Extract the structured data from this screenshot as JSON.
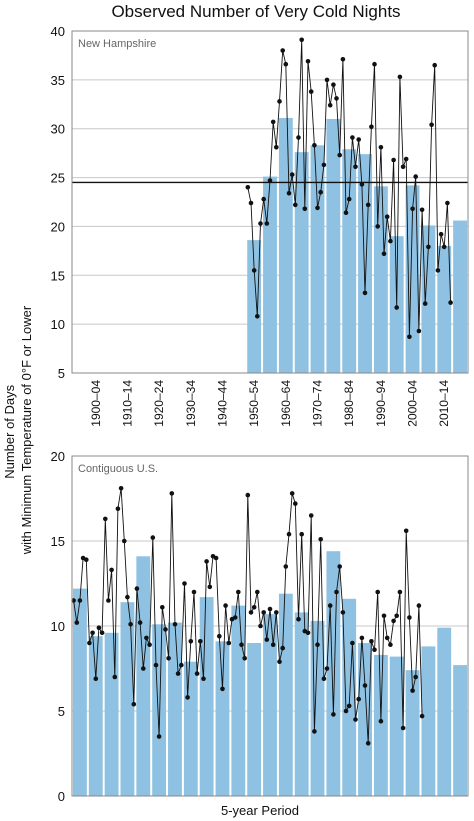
{
  "chart_data": [
    {
      "type": "bar",
      "title": "Observed Number of Very Cold Nights",
      "panel_label": "New Hampshire",
      "ylabel": "Number of Days\nwith Minimum Temperature of 0°F or Lower",
      "ylim": [
        5,
        40
      ],
      "yticks": [
        5,
        10,
        15,
        20,
        25,
        30,
        35,
        40
      ],
      "grid": true,
      "x_tick_labels": [
        "1900–04",
        "1910–14",
        "1920–24",
        "1930–34",
        "1940–44",
        "1950–54",
        "1960–64",
        "1970–74",
        "1980–84",
        "1990–94",
        "2000–04",
        "2010–14"
      ],
      "reference_line": 24.5,
      "bars": [
        {
          "period": "1950–54",
          "value": 18.6
        },
        {
          "period": "1955–59",
          "value": 25.1
        },
        {
          "period": "1960–64",
          "value": 31.1
        },
        {
          "period": "1965–69",
          "value": 27.6
        },
        {
          "period": "1970–74",
          "value": 28.3
        },
        {
          "period": "1975–79",
          "value": 31.0
        },
        {
          "period": "1980–84",
          "value": 27.9
        },
        {
          "period": "1985–89",
          "value": 27.4
        },
        {
          "period": "1990–94",
          "value": 24.1
        },
        {
          "period": "1995–99",
          "value": 19.0
        },
        {
          "period": "2000–04",
          "value": 24.2
        },
        {
          "period": "2005–09",
          "value": 20.1
        },
        {
          "period": "2010–14",
          "value": 18.0
        },
        {
          "period": "2015–19",
          "value": 20.6
        }
      ],
      "points": {
        "start_year": 1950,
        "values": [
          24.0,
          22.4,
          15.5,
          10.8,
          20.3,
          22.8,
          20.3,
          24.7,
          30.7,
          28.1,
          32.8,
          38.0,
          36.6,
          23.4,
          25.3,
          22.2,
          29.1,
          39.1,
          21.8,
          36.9,
          33.8,
          28.3,
          21.9,
          23.5,
          26.3,
          35.0,
          32.4,
          34.5,
          33.1,
          27.3,
          37.1,
          21.4,
          22.8,
          29.1,
          26.1,
          28.9,
          24.3,
          13.2,
          22.2,
          30.2,
          36.6,
          20.0,
          28.1,
          17.2,
          21.0,
          18.5,
          26.8,
          11.7,
          35.3,
          26.1,
          26.9,
          8.7,
          21.8,
          25.1,
          9.3,
          21.7,
          12.1,
          17.9,
          30.4,
          36.5,
          15.5,
          19.2,
          17.9,
          22.4,
          12.2
        ]
      }
    },
    {
      "type": "bar",
      "panel_label": "Contiguous U.S.",
      "xlabel": "5-year Period",
      "ylim": [
        0,
        20
      ],
      "yticks": [
        0,
        5,
        10,
        15,
        20
      ],
      "grid": true,
      "bars": [
        {
          "period": "1895–99",
          "value": 12.2
        },
        {
          "period": "1900–04",
          "value": 9.4
        },
        {
          "period": "1905–09",
          "value": 9.6
        },
        {
          "period": "1910–14",
          "value": 11.4
        },
        {
          "period": "1915–19",
          "value": 14.1
        },
        {
          "period": "1920–24",
          "value": 10.1
        },
        {
          "period": "1925–29",
          "value": 10.2
        },
        {
          "period": "1930–34",
          "value": 7.9
        },
        {
          "period": "1935–39",
          "value": 11.7
        },
        {
          "period": "1940–44",
          "value": 9.1
        },
        {
          "period": "1945–49",
          "value": 11.2
        },
        {
          "period": "1950–54",
          "value": 9.0
        },
        {
          "period": "1955–59",
          "value": 10.7
        },
        {
          "period": "1960–64",
          "value": 11.9
        },
        {
          "period": "1965–69",
          "value": 10.8
        },
        {
          "period": "1970–74",
          "value": 10.3
        },
        {
          "period": "1975–79",
          "value": 14.4
        },
        {
          "period": "1980–84",
          "value": 11.6
        },
        {
          "period": "1985–89",
          "value": 9.0
        },
        {
          "period": "1990–94",
          "value": 8.3
        },
        {
          "period": "1995–99",
          "value": 8.2
        },
        {
          "period": "2000–04",
          "value": 7.4
        },
        {
          "period": "2005–09",
          "value": 8.8
        },
        {
          "period": "2010–14",
          "value": 9.9
        },
        {
          "period": "2015–19",
          "value": 7.7
        }
      ],
      "points": {
        "start_year": 1895,
        "values": [
          11.5,
          10.2,
          11.5,
          14.0,
          13.9,
          9.0,
          9.6,
          6.9,
          9.9,
          9.6,
          16.3,
          11.5,
          13.3,
          7.0,
          16.9,
          18.1,
          15.0,
          11.7,
          10.1,
          5.4,
          12.2,
          10.2,
          7.5,
          9.3,
          8.9,
          15.2,
          7.7,
          3.5,
          11.1,
          9.8,
          8.1,
          17.8,
          10.1,
          7.2,
          7.7,
          12.5,
          5.8,
          9.1,
          12.0,
          7.2,
          9.1,
          6.9,
          13.8,
          12.3,
          14.1,
          14.0,
          9.4,
          6.3,
          11.2,
          9.0,
          10.4,
          10.5,
          12.0,
          8.9,
          8.1,
          17.7,
          10.8,
          11.1,
          12.0,
          10.0,
          10.8,
          9.2,
          11.0,
          8.9,
          10.8,
          7.9,
          8.7,
          13.5,
          15.4,
          17.8,
          17.2,
          10.4,
          15.4,
          9.7,
          9.6,
          16.5,
          3.8,
          8.9,
          15.1,
          6.9,
          7.5,
          11.2,
          4.8,
          12.0,
          13.5,
          10.8,
          5.0,
          5.3,
          9.0,
          4.5,
          5.7,
          9.3,
          6.5,
          3.1,
          9.1,
          8.6,
          12.0,
          4.4,
          10.6,
          9.3,
          8.9,
          10.3,
          10.6,
          12.0,
          4.0,
          15.6,
          10.5,
          6.2,
          7.0,
          11.2,
          4.7
        ]
      }
    }
  ]
}
